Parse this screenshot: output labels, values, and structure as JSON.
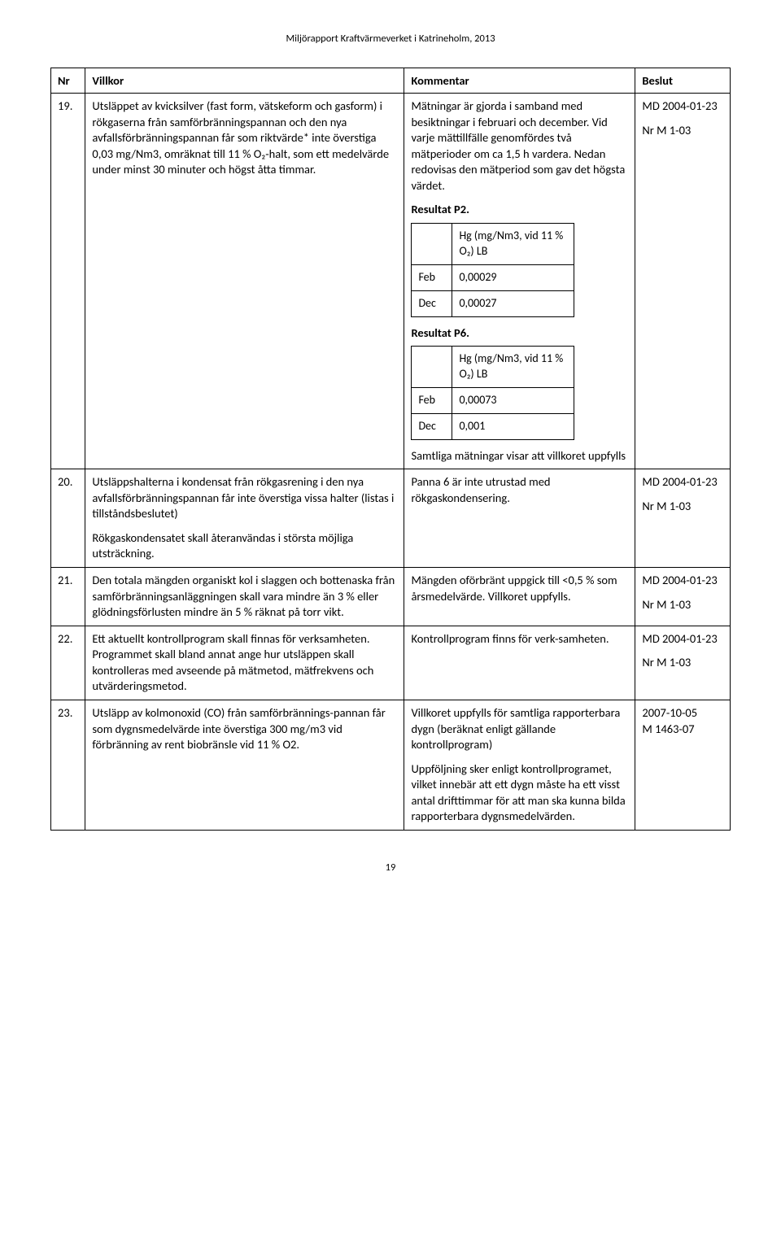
{
  "doc_header": "Miljörapport Kraftvärmeverket i Katrineholm, 2013",
  "columns": {
    "nr": "Nr",
    "villkor": "Villkor",
    "kommentar": "Kommentar",
    "beslut": "Beslut"
  },
  "rows": [
    {
      "nr": "19.",
      "villkor": "Utsläppet av kvicksilver (fast form, vätskeform och gasform) i rökgaserna från samförbränningspannan och den nya avfallsförbränningspannan får som riktvärde* inte överstiga 0,03 mg/Nm3, omräknat till 11 % O₂-halt, som ett medelvärde under minst 30 minuter och högst åtta timmar.",
      "kommentar_para": "Mätningar är gjorda i samband med besiktningar i februari och december. Vid varje mättillfälle genomfördes två mätperioder om ca 1,5 h vardera. Nedan redovisas den mätperiod som gav det högsta värdet.",
      "result_p2_label": "Resultat P2.",
      "tbl_p2": {
        "header_val": "Hg (mg/Nm3, vid 11 % O₂) LB",
        "rows": [
          {
            "m": "Feb",
            "v": "0,00029"
          },
          {
            "m": "Dec",
            "v": "0,00027"
          }
        ]
      },
      "result_p6_label": "Resultat P6.",
      "tbl_p6": {
        "header_val": "Hg (mg/Nm3, vid 11 % O₂) LB",
        "rows": [
          {
            "m": "Feb",
            "v": "0,00073"
          },
          {
            "m": "Dec",
            "v": "0,001"
          }
        ]
      },
      "kommentar_tail": "Samtliga mätningar visar att villkoret uppfylls",
      "beslut_1": "MD 2004-01-23",
      "beslut_2": "Nr M 1-03"
    },
    {
      "nr": "20.",
      "villkor_p1": "Utsläppshalterna i kondensat från rökgasrening i den nya avfallsförbränningspannan får inte överstiga vissa halter (listas i tillståndsbeslutet)",
      "villkor_p2": "Rökgaskondensatet skall återanvändas i största möjliga utsträckning.",
      "kommentar": "Panna 6 är inte utrustad med rökgaskondensering.",
      "beslut_1": "MD 2004-01-23",
      "beslut_2": "Nr M 1-03"
    },
    {
      "nr": "21.",
      "villkor": "Den totala mängden organiskt kol i slaggen och bottenaska från samförbränningsanläggningen skall vara mindre än 3 % eller glödningsförlusten mindre än 5 % räknat på torr vikt.",
      "kommentar": "Mängden oförbränt uppgick till <0,5 % som årsmedelvärde. Villkoret uppfylls.",
      "beslut_1": "MD 2004-01-23",
      "beslut_2": "Nr M 1-03"
    },
    {
      "nr": "22.",
      "villkor": "Ett aktuellt kontrollprogram skall finnas för verksamheten. Programmet skall bland annat ange hur utsläppen skall kontrolleras med avseende på mätmetod, mätfrekvens och utvärderingsmetod.",
      "kommentar": "Kontrollprogram finns för verk-samheten.",
      "beslut_1": "MD 2004-01-23",
      "beslut_2": "Nr M 1-03"
    },
    {
      "nr": "23.",
      "villkor": "Utsläpp av kolmonoxid (CO) från samförbrännings-pannan får som dygnsmedelvärde inte överstiga 300 mg/m3 vid förbränning av rent biobränsle vid 11 % O2.",
      "kommentar_p1": "Villkoret uppfylls för samtliga rapporterbara dygn (beräknat enligt gällande kontrollprogram)",
      "kommentar_p2": "Uppföljning sker enligt kontrollprogramet, vilket innebär att ett dygn måste ha ett visst antal drifttimmar för att man ska kunna bilda rapporterbara dygnsmedelvärden.",
      "beslut_1": "2007-10-05",
      "beslut_2": "M 1463-07"
    }
  ],
  "page_number": "19"
}
